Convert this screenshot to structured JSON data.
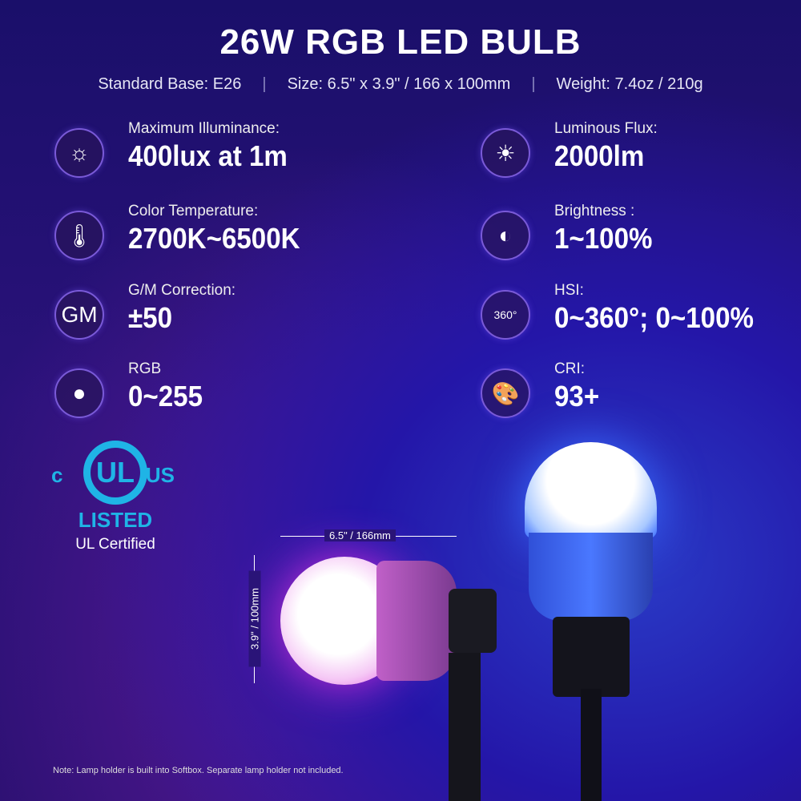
{
  "title": "26W RGB LED BULB",
  "specs": [
    "Standard Base: E26",
    "Size: 6.5\" x 3.9\" / 166 x 100mm",
    "Weight: 7.4oz / 210g"
  ],
  "features": [
    {
      "label": "Maximum Illuminance:",
      "value": "400lux at 1m",
      "icon": "sun-waves-icon",
      "glyph": "☼"
    },
    {
      "label": "Color Temperature:",
      "value": "2700K~6500K",
      "icon": "thermometer-icon",
      "glyph": "🌡"
    },
    {
      "label": "G/M Correction:",
      "value": "±50",
      "icon": "gm-icon",
      "glyph": "GM"
    },
    {
      "label": "RGB",
      "value": "0~255",
      "icon": "rgb-circles-icon",
      "glyph": "●"
    },
    {
      "label": "Luminous Flux:",
      "value": "2000lm",
      "icon": "sun-icon",
      "glyph": "☀"
    },
    {
      "label": "Brightness :",
      "value": "1~100%",
      "icon": "brightness-icon",
      "glyph": "◐"
    },
    {
      "label": "HSI:",
      "value": "0~360°; 0~100%",
      "icon": "hsi-wheel-icon",
      "glyph": "360°"
    },
    {
      "label": "CRI:",
      "value": "93+",
      "icon": "palette-icon",
      "glyph": "🎨"
    }
  ],
  "ul": {
    "c": "c",
    "mark": "UL",
    "us": "US",
    "listed": "LISTED",
    "certified": "UL Certified"
  },
  "dimensions": {
    "width": "6.5\" / 166mm",
    "height": "3.9\" / 100mm"
  },
  "note": "Note: Lamp holder is built into Softbox. Separate lamp holder not included.",
  "colors": {
    "accent_ul": "#1fb4e6",
    "bulb_pink": "#e040e0",
    "bulb_blue": "#3a6cff"
  }
}
